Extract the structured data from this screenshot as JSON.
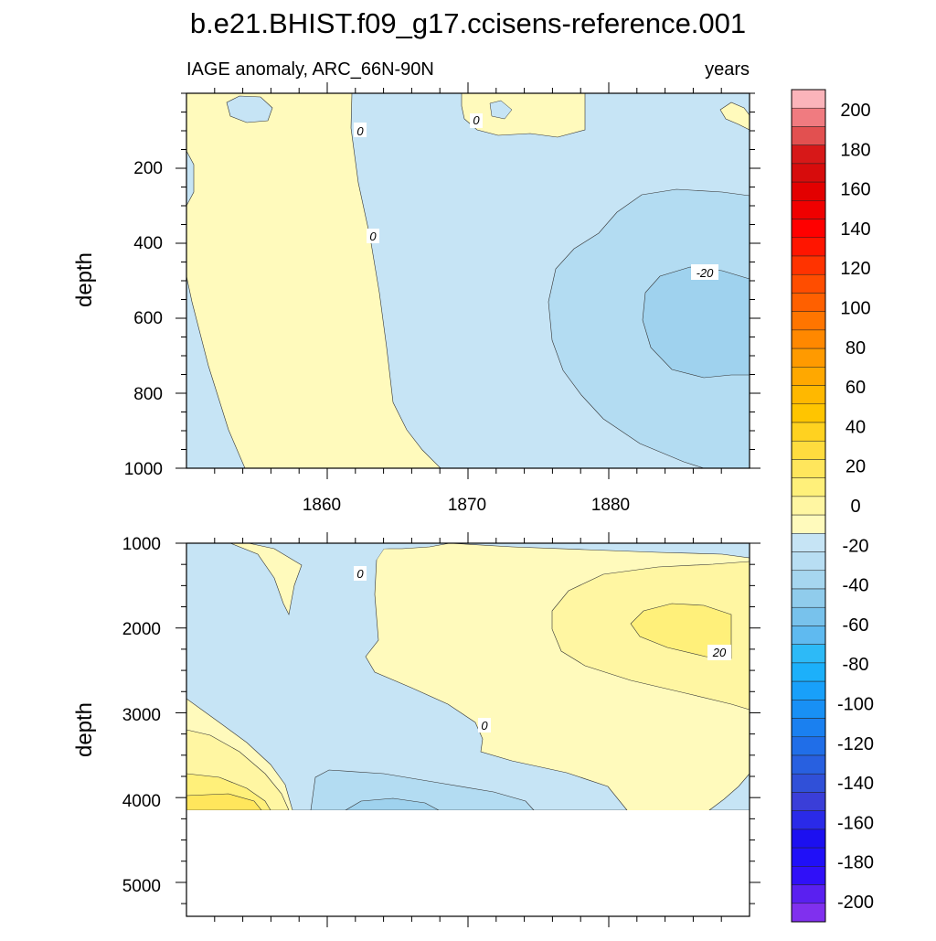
{
  "chart_data": [
    {
      "type": "heatmap",
      "panel": "upper",
      "title": "b.e21.BHIST.f09_g17.ccisens-reference.001",
      "left_label": "IAGE anomaly, ARC_66N-90N",
      "right_label": "years",
      "ylabel": "depth",
      "xlabel": "",
      "xlim": [
        1850,
        1890
      ],
      "ylim": [
        0,
        1000
      ],
      "y_reversed": true,
      "x_ticks": [
        "1860",
        "1870",
        "1880"
      ],
      "y_ticks": [
        "200",
        "400",
        "600",
        "800",
        "1000"
      ],
      "contour_labels": [
        "0",
        "0",
        "0",
        "-20"
      ],
      "regions": [
        {
          "range": "0 to 10",
          "description": "years 1850-1868 over most depths"
        },
        {
          "range": "-10 to 0",
          "description": "years 1864-1890 and small near-surface patches"
        },
        {
          "range": "-20 to -10",
          "description": "years 1876-1890, depth 250-1000"
        },
        {
          "range": "-30 to -20",
          "description": "years 1883-1890, depth 480-760"
        }
      ]
    },
    {
      "type": "heatmap",
      "panel": "lower",
      "ylabel": "depth",
      "xlim": [
        1850,
        1890
      ],
      "ylim": [
        1000,
        5400
      ],
      "y_reversed": true,
      "y_ticks": [
        "1000",
        "2000",
        "3000",
        "4000",
        "5000"
      ],
      "missing_below_depth": 4120,
      "contour_labels": [
        "0",
        "0",
        "20"
      ],
      "regions": [
        {
          "range": "-10 to 0",
          "description": "years 1850-1872 from 1000 to 4100, deeper near 1860-1875"
        },
        {
          "range": "0 to 10",
          "description": "years 1858-1890 upper and middle depths"
        },
        {
          "range": "10 to 20",
          "description": "years 1876-1890 depth 1300-2800 and bottom-left corner"
        },
        {
          "range": "20 to 30",
          "description": "years 1883-1890 depth 1700-2300 and year 1850-1855 near 4000"
        }
      ]
    }
  ],
  "colorbar": {
    "tick_labels": [
      "200",
      "180",
      "160",
      "140",
      "120",
      "100",
      "80",
      "60",
      "40",
      "20",
      "0",
      "-20",
      "-40",
      "-60",
      "-80",
      "-100",
      "-120",
      "-140",
      "-160",
      "-180",
      "-200"
    ],
    "colors": [
      "#fbb4ba",
      "#f07b80",
      "#e25050",
      "#d71818",
      "#d70c0c",
      "#e30000",
      "#f00000",
      "#ff0000",
      "#ff1500",
      "#ff3300",
      "#ff4d00",
      "#ff6000",
      "#ff7500",
      "#ff8800",
      "#ff9a00",
      "#ffa800",
      "#ffb800",
      "#ffc500",
      "#ffd220",
      "#ffdc3e",
      "#ffe65c",
      "#fff07a",
      "#fff6a2",
      "#fffabc",
      "#c6e4f5",
      "#b8def3",
      "#a6d6ef",
      "#90ccec",
      "#78c2ec",
      "#5fbaf0",
      "#2dbaf7",
      "#1cb0fa",
      "#18a0fa",
      "#1890f5",
      "#1a80f0",
      "#206ee8",
      "#2860e0",
      "#3050d8",
      "#3a3ed8",
      "#2a2ae8",
      "#1c10f0",
      "#2010f8",
      "#3010f8",
      "#5a20f0",
      "#8030ee"
    ]
  }
}
